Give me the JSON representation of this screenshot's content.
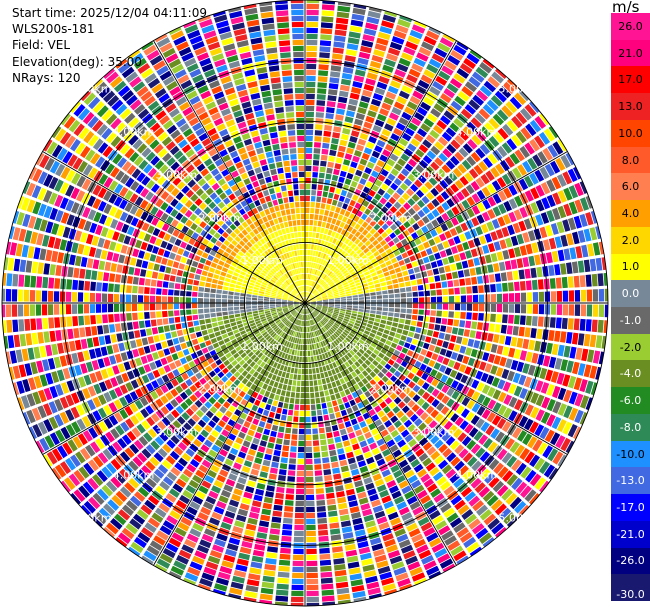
{
  "header": {
    "start_time": "Start time: 2025/12/04 04:11:09",
    "instrument": "WLS200s-181",
    "field": "Field: VEL",
    "elevation": "Elevation(deg): 35.00",
    "nrays": "NRays: 120"
  },
  "chart_data": {
    "type": "heatmap",
    "projection": "polar-ppi",
    "field": "VEL",
    "units": "m/s",
    "elevation_deg": 35.0,
    "n_rays": 120,
    "range_rings_km": [
      1.0,
      2.0,
      3.0,
      4.0,
      5.0
    ],
    "range_ring_labels": [
      "1.00km",
      "2.00km",
      "3.00km",
      "4.00km",
      "5.00km"
    ],
    "max_range_km": 5.0,
    "colorbar": {
      "title": "m/s",
      "ticks": [
        "26.0",
        "21.0",
        "17.0",
        "13.0",
        "10.0",
        "8.0",
        "6.0",
        "4.0",
        "2.0",
        "1.0",
        "0.0",
        "-1.0",
        "-2.0",
        "-4.0",
        "-6.0",
        "-8.0",
        "-10.0",
        "-13.0",
        "-17.0",
        "-21.0",
        "-26.0",
        "-30.0"
      ],
      "colors": [
        "#ff1493",
        "#ff007f",
        "#ff0000",
        "#ee2222",
        "#ff4500",
        "#ff5a2a",
        "#ff7f50",
        "#ff9f00",
        "#ffd700",
        "#ffff00",
        "#778899",
        "#696969",
        "#9acd32",
        "#6b8e23",
        "#228b22",
        "#2e8b57",
        "#1e90ff",
        "#4169e1",
        "#0000ff",
        "#0000cd",
        "#000080",
        "#191970"
      ]
    },
    "near_field_description": "positive velocities (yellow/orange) north of the lidar, negative velocities (olive green) south, near-zero (grey) along the east-west axis; noise beyond ~1.7 km"
  }
}
